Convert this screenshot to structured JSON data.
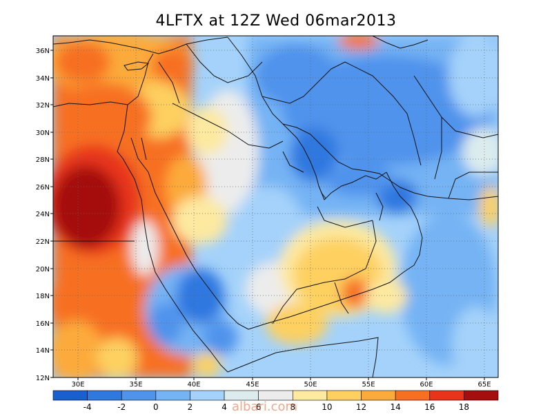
{
  "title": "4LFTX at 12Z Wed 06mar2013",
  "lat_labels": [
    "36N",
    "34N",
    "32N",
    "30N",
    "28N",
    "26N",
    "24N",
    "22N",
    "20N",
    "18N",
    "16N",
    "14N",
    "12N"
  ],
  "lon_labels": [
    "30E",
    "35E",
    "40E",
    "45E",
    "50E",
    "55E",
    "60E",
    "65E"
  ],
  "map": {
    "lon_range": [
      27,
      66
    ],
    "lat_range": [
      12,
      37
    ],
    "grid_dotted": true
  },
  "colorbar": {
    "labels": [
      "-4",
      "-2",
      "0",
      "2",
      "4",
      "6",
      "8",
      "10",
      "12",
      "14",
      "16",
      "18"
    ],
    "colors": [
      "#1a5fd0",
      "#2f78e0",
      "#4f93ec",
      "#74b3f4",
      "#a4d2fa",
      "#dcecee",
      "#ececec",
      "#fde9a0",
      "#fdd060",
      "#fcaa3a",
      "#f77020",
      "#e8341a",
      "#a50e0e"
    ]
  },
  "watermark": "albari.com"
}
